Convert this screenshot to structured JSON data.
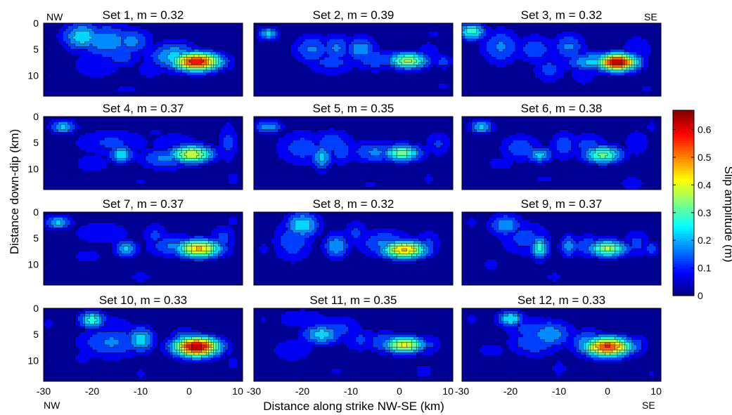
{
  "chart_data": {
    "type": "heatmap",
    "panels": [
      {
        "title": "Set 1, m = 0.32",
        "hotspots": [
          [
            -22,
            2.6,
            0.24,
            3.0,
            2.0
          ],
          [
            -17,
            3.5,
            0.19,
            4.5,
            2.5
          ],
          [
            -12,
            3.5,
            0.17,
            3.0,
            2.0
          ],
          [
            -14,
            6.2,
            0.13,
            3.0,
            1.8
          ],
          [
            -19,
            8.0,
            0.1,
            4.0,
            2.0
          ],
          [
            1.5,
            7.4,
            0.6,
            3.6,
            1.3
          ],
          [
            -3,
            6.4,
            0.22,
            3.8,
            2.0
          ],
          [
            -8,
            8.8,
            0.07,
            3.0,
            2.0
          ],
          [
            7,
            8.0,
            0.06,
            4.0,
            2.0
          ],
          [
            -13,
            12.6,
            0.06,
            3.0,
            1.0
          ],
          [
            -5,
            11.5,
            0.05,
            2.0,
            1.5
          ],
          [
            8,
            12.0,
            0.05,
            2.0,
            1.2
          ]
        ]
      },
      {
        "title": "Set 2, m = 0.39",
        "hotspots": [
          [
            -27,
            2.0,
            0.22,
            1.6,
            1.0
          ],
          [
            -18,
            5.0,
            0.16,
            3.0,
            2.0
          ],
          [
            -13,
            4.8,
            0.16,
            2.2,
            2.0
          ],
          [
            -8,
            5.0,
            0.19,
            2.4,
            1.8
          ],
          [
            1.8,
            7.2,
            0.36,
            3.0,
            1.2
          ],
          [
            -5,
            7.0,
            0.14,
            4.0,
            1.6
          ],
          [
            -14,
            7.5,
            0.12,
            4.0,
            1.8
          ],
          [
            6,
            6.0,
            0.1,
            2.0,
            2.0
          ],
          [
            9,
            7.4,
            0.14,
            1.4,
            1.0
          ],
          [
            7,
            2.0,
            0.06,
            2.0,
            1.0
          ],
          [
            -17,
            10.0,
            0.05,
            1.6,
            3.0
          ],
          [
            9,
            12.0,
            0.06,
            1.4,
            1.0
          ]
        ]
      },
      {
        "title": "Set 3, m = 0.32",
        "hotspots": [
          [
            -28,
            1.6,
            0.28,
            2.2,
            1.2
          ],
          [
            -22,
            4.5,
            0.16,
            3.0,
            2.5
          ],
          [
            -15,
            5.0,
            0.14,
            3.0,
            2.0
          ],
          [
            -8,
            4.5,
            0.16,
            2.5,
            2.0
          ],
          [
            2,
            7.5,
            0.64,
            3.0,
            1.2
          ],
          [
            -3,
            7.4,
            0.22,
            4.0,
            1.4
          ],
          [
            -12,
            8.8,
            0.12,
            2.5,
            2.0
          ],
          [
            6,
            5.0,
            0.1,
            2.5,
            2.0
          ],
          [
            -5,
            10.0,
            0.1,
            2.0,
            1.5
          ],
          [
            -12,
            12.5,
            0.05,
            3.0,
            1.0
          ],
          [
            8,
            12.5,
            0.06,
            2.0,
            1.0
          ],
          [
            3,
            11.0,
            0.04,
            2.0,
            1.5
          ]
        ]
      },
      {
        "title": "Set 4, m = 0.37",
        "hotspots": [
          [
            -26,
            2.0,
            0.22,
            2.0,
            1.0
          ],
          [
            -16,
            5.0,
            0.11,
            6.0,
            2.0
          ],
          [
            -14,
            7.2,
            0.24,
            1.8,
            1.3
          ],
          [
            -3,
            5.5,
            0.1,
            4.0,
            2.0
          ],
          [
            0.5,
            7.2,
            0.4,
            3.2,
            1.3
          ],
          [
            -5,
            8.0,
            0.16,
            4.0,
            1.6
          ],
          [
            8,
            5.0,
            0.12,
            1.6,
            3.0
          ],
          [
            9,
            12.0,
            0.1,
            1.0,
            1.0
          ],
          [
            -10,
            12.5,
            0.06,
            1.5,
            1.2
          ],
          [
            -20,
            9.0,
            0.07,
            4.0,
            2.0
          ],
          [
            -7,
            3.0,
            0.06,
            2.0,
            1.0
          ]
        ]
      },
      {
        "title": "Set 5, m = 0.35",
        "hotspots": [
          [
            -27,
            2.0,
            0.2,
            2.0,
            1.0
          ],
          [
            -20,
            6.0,
            0.13,
            4.0,
            2.5
          ],
          [
            -14,
            5.0,
            0.13,
            3.5,
            2.0
          ],
          [
            -16,
            7.8,
            0.22,
            1.6,
            1.8
          ],
          [
            -12,
            6.5,
            0.14,
            2.0,
            2.0
          ],
          [
            0.5,
            7.0,
            0.32,
            3.0,
            1.2
          ],
          [
            -5,
            6.8,
            0.16,
            4.0,
            1.6
          ],
          [
            8,
            5.2,
            0.11,
            2.0,
            1.8
          ],
          [
            -6,
            13.0,
            0.06,
            2.0,
            1.0
          ],
          [
            6,
            12.0,
            0.06,
            2.0,
            1.5
          ],
          [
            -11,
            11.0,
            0.04,
            1.0,
            2.0
          ]
        ]
      },
      {
        "title": "Set 6, m = 0.38",
        "hotspots": [
          [
            -26,
            2.0,
            0.22,
            1.8,
            1.0
          ],
          [
            -18,
            6.0,
            0.14,
            3.0,
            2.0
          ],
          [
            -14,
            7.3,
            0.22,
            2.0,
            1.2
          ],
          [
            -9,
            5.5,
            0.14,
            2.0,
            2.0
          ],
          [
            -1,
            7.3,
            0.32,
            3.0,
            1.3
          ],
          [
            -4,
            5.5,
            0.12,
            3.0,
            1.8
          ],
          [
            6,
            5.0,
            0.1,
            2.0,
            2.0
          ],
          [
            9,
            2.0,
            0.07,
            1.0,
            1.0
          ],
          [
            -13,
            12.0,
            0.06,
            3.0,
            1.0
          ],
          [
            5,
            12.8,
            0.1,
            2.0,
            1.0
          ],
          [
            -22,
            9.0,
            0.07,
            3.0,
            1.5
          ]
        ]
      },
      {
        "title": "Set 7, m = 0.37",
        "hotspots": [
          [
            -27,
            2.0,
            0.22,
            2.0,
            1.0
          ],
          [
            -18,
            4.0,
            0.09,
            5.0,
            2.0
          ],
          [
            -13,
            7.0,
            0.22,
            1.8,
            1.2
          ],
          [
            -7,
            4.5,
            0.11,
            2.0,
            2.0
          ],
          [
            2,
            7.0,
            0.46,
            3.4,
            1.3
          ],
          [
            -3,
            6.5,
            0.16,
            4.0,
            1.6
          ],
          [
            7,
            5.0,
            0.12,
            2.0,
            2.0
          ],
          [
            9,
            1.8,
            0.08,
            1.0,
            1.0
          ],
          [
            -10,
            12.5,
            0.08,
            2.0,
            1.0
          ],
          [
            -21,
            8.5,
            0.07,
            3.0,
            1.5
          ]
        ]
      },
      {
        "title": "Set 8, m = 0.32",
        "hotspots": [
          [
            -20,
            2.5,
            0.25,
            2.5,
            1.8
          ],
          [
            -22,
            5.5,
            0.14,
            3.0,
            3.0
          ],
          [
            -13,
            6.5,
            0.2,
            2.0,
            1.8
          ],
          [
            -9,
            4.0,
            0.11,
            2.0,
            2.0
          ],
          [
            1,
            7.2,
            0.46,
            3.4,
            1.3
          ],
          [
            -3,
            6.0,
            0.16,
            4.0,
            2.0
          ],
          [
            6,
            6.0,
            0.11,
            2.0,
            2.0
          ],
          [
            -28,
            7.0,
            0.07,
            1.0,
            1.0
          ],
          [
            -18,
            12.0,
            0.05,
            2.0,
            1.5
          ],
          [
            6,
            12.0,
            0.05,
            2.0,
            1.5
          ],
          [
            -8,
            10.5,
            0.03,
            1.0,
            1.5
          ]
        ]
      },
      {
        "title": "Set 9, m = 0.37",
        "hotspots": [
          [
            -21,
            2.5,
            0.19,
            2.5,
            1.6
          ],
          [
            -17,
            5.0,
            0.12,
            4.0,
            2.5
          ],
          [
            -14,
            6.8,
            0.27,
            1.4,
            1.7
          ],
          [
            -8,
            6.5,
            0.19,
            1.4,
            1.6
          ],
          [
            0,
            7.0,
            0.36,
            3.0,
            1.2
          ],
          [
            -4,
            6.5,
            0.14,
            3.0,
            1.6
          ],
          [
            6,
            6.0,
            0.12,
            2.0,
            2.0
          ],
          [
            9,
            7.0,
            0.14,
            1.2,
            1.0
          ],
          [
            -28,
            2.0,
            0.07,
            1.0,
            1.0
          ],
          [
            -11,
            12.5,
            0.07,
            2.0,
            1.0
          ],
          [
            -24,
            10.0,
            0.06,
            3.0,
            1.5
          ]
        ]
      },
      {
        "title": "Set 10, m = 0.33",
        "hotspots": [
          [
            -20,
            2.2,
            0.28,
            2.0,
            1.2
          ],
          [
            -16,
            4.0,
            0.1,
            4.0,
            2.0
          ],
          [
            -16,
            6.5,
            0.16,
            5.0,
            2.2
          ],
          [
            -10,
            6.0,
            0.24,
            2.0,
            1.8
          ],
          [
            1.5,
            7.4,
            0.64,
            3.4,
            1.4
          ],
          [
            -1,
            6.5,
            0.22,
            2.0,
            1.8
          ],
          [
            6,
            7.5,
            0.12,
            2.0,
            1.5
          ],
          [
            -29,
            3.0,
            0.07,
            1.0,
            1.0
          ],
          [
            -10,
            12.5,
            0.07,
            1.5,
            1.0
          ],
          [
            9,
            10.5,
            0.1,
            1.0,
            1.0
          ],
          [
            -22,
            9.5,
            0.06,
            3.0,
            1.5
          ]
        ]
      },
      {
        "title": "Set 11, m = 0.35",
        "hotspots": [
          [
            -20,
            2.0,
            0.1,
            4.0,
            1.5
          ],
          [
            -16,
            5.0,
            0.23,
            3.0,
            1.5
          ],
          [
            -13,
            4.0,
            0.12,
            4.0,
            2.0
          ],
          [
            -8,
            6.0,
            0.11,
            3.0,
            1.8
          ],
          [
            1,
            7.0,
            0.42,
            3.0,
            1.2
          ],
          [
            -3,
            6.5,
            0.15,
            3.0,
            1.6
          ],
          [
            6,
            7.0,
            0.11,
            2.0,
            1.5
          ],
          [
            -28,
            2.0,
            0.06,
            1.0,
            1.0
          ],
          [
            -22,
            8.0,
            0.08,
            4.0,
            2.0
          ],
          [
            -13,
            12.0,
            0.06,
            2.0,
            1.2
          ],
          [
            -2,
            12.5,
            0.05,
            2.0,
            1.0
          ],
          [
            5,
            12.0,
            0.07,
            2.0,
            1.5
          ]
        ]
      },
      {
        "title": "Set 12, m = 0.33",
        "hotspots": [
          [
            -20,
            2.0,
            0.25,
            2.0,
            1.2
          ],
          [
            -16,
            4.0,
            0.12,
            4.0,
            2.0
          ],
          [
            -12,
            5.0,
            0.19,
            3.5,
            2.0
          ],
          [
            -15,
            6.5,
            0.15,
            4.0,
            2.0
          ],
          [
            0,
            7.4,
            0.56,
            3.6,
            1.4
          ],
          [
            -4,
            6.5,
            0.18,
            3.0,
            1.8
          ],
          [
            6,
            7.0,
            0.12,
            2.0,
            1.6
          ],
          [
            -28,
            2.0,
            0.07,
            1.0,
            1.0
          ],
          [
            -10,
            11.5,
            0.08,
            1.5,
            1.5
          ],
          [
            9,
            12.5,
            0.06,
            1.0,
            1.0
          ],
          [
            -24,
            8.0,
            0.07,
            3.0,
            1.5
          ]
        ]
      }
    ],
    "xlim": [
      -30,
      11
    ],
    "ylim": [
      0,
      14
    ],
    "xticks": [
      -30,
      -20,
      -10,
      0,
      10
    ],
    "yticks": [
      0,
      5,
      10
    ],
    "xlabel": "Distance along strike NW-SE (km)",
    "ylabel": "Distance down-dip (km)",
    "corner_labels": {
      "top_left": "NW",
      "top_right": "SE",
      "bottom_left": "NW",
      "bottom_right": "SE"
    },
    "colorbar": {
      "label": "Slip amplitude (m)",
      "min": 0,
      "max": 0.67,
      "ticks": [
        0,
        0.1,
        0.2,
        0.3,
        0.4,
        0.5,
        0.6
      ],
      "tick_labels": [
        "0",
        "0.1",
        "0.2",
        "0.3",
        "0.4",
        "0.5",
        "0.6"
      ],
      "colormap": "jet",
      "contour_interval": 0.05,
      "background": 0.012
    }
  }
}
